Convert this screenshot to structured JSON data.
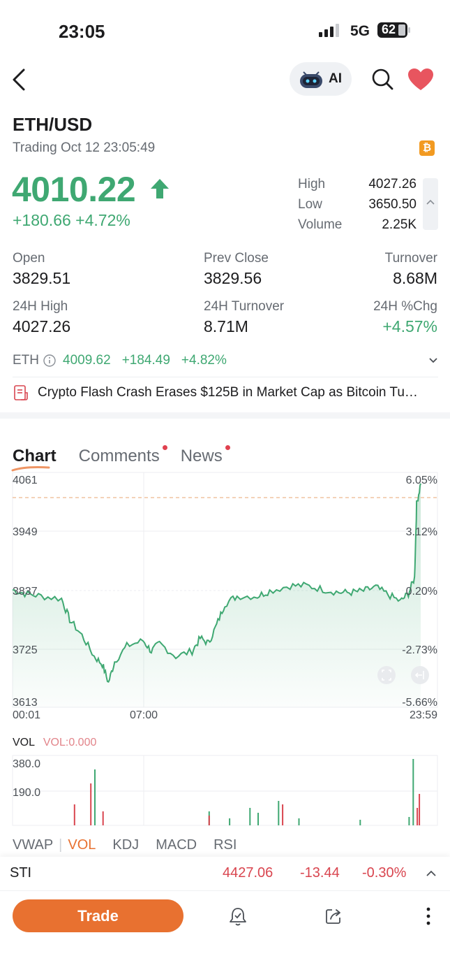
{
  "status": {
    "time": "23:05",
    "network": "5G",
    "battery": "62"
  },
  "header": {
    "ai_label": "AI"
  },
  "symbol": {
    "pair": "ETH/USD",
    "trading_status": "Trading Oct 12 23:05:49",
    "badge": "₿"
  },
  "quote": {
    "price": "4010.22",
    "change": "+180.66 +4.72%",
    "high_label": "High",
    "high": "4027.26",
    "low_label": "Low",
    "low": "3650.50",
    "volume_label": "Volume",
    "volume": "2.25K"
  },
  "stats": [
    {
      "label": "Open",
      "value": "3829.51"
    },
    {
      "label": "Prev Close",
      "value": "3829.56"
    },
    {
      "label": "Turnover",
      "value": "8.68M"
    },
    {
      "label": "24H High",
      "value": "4027.26"
    },
    {
      "label": "24H Turnover",
      "value": "8.71M"
    },
    {
      "label": "24H %Chg",
      "value": "+4.57%"
    }
  ],
  "eth_row": {
    "name": "ETH",
    "price": "4009.62",
    "change": "+184.49",
    "pct": "+4.82%"
  },
  "news_headline": "Crypto Flash Crash Erases $125B in Market Cap as Bitcoin Tu…",
  "tabs": [
    {
      "label": "Chart",
      "active": true
    },
    {
      "label": "Comments",
      "dot": true
    },
    {
      "label": "News",
      "dot": true
    }
  ],
  "chart": {
    "y_left": [
      "4061",
      "3949",
      "3837",
      "3725",
      "3613"
    ],
    "y_right": [
      "6.05%",
      "3.12%",
      "0.20%",
      "-2.73%",
      "-5.66%"
    ],
    "x_labels": [
      "00:01",
      "07:00",
      "23:59"
    ]
  },
  "volume": {
    "title": "VOL",
    "value_label": "VOL:0.000",
    "ticks": [
      "380.0",
      "190.0"
    ]
  },
  "indicators": [
    "VWAP",
    "VOL",
    "KDJ",
    "MACD",
    "RSI"
  ],
  "active_indicator": "VOL",
  "ticker": {
    "name": "STI",
    "price": "4427.06",
    "change": "-13.44",
    "pct": "-0.30%"
  },
  "actions": {
    "trade_label": "Trade"
  },
  "colors": {
    "up": "#3fa872",
    "down": "#d9454f",
    "accent": "#e87130"
  },
  "chart_data": {
    "type": "area",
    "x": [
      "00:01",
      "07:00",
      "23:59"
    ],
    "y": [
      3837,
      3750,
      4040
    ],
    "ylim": [
      3613,
      4061
    ],
    "reference_line": 4040,
    "baseline": 3837
  }
}
